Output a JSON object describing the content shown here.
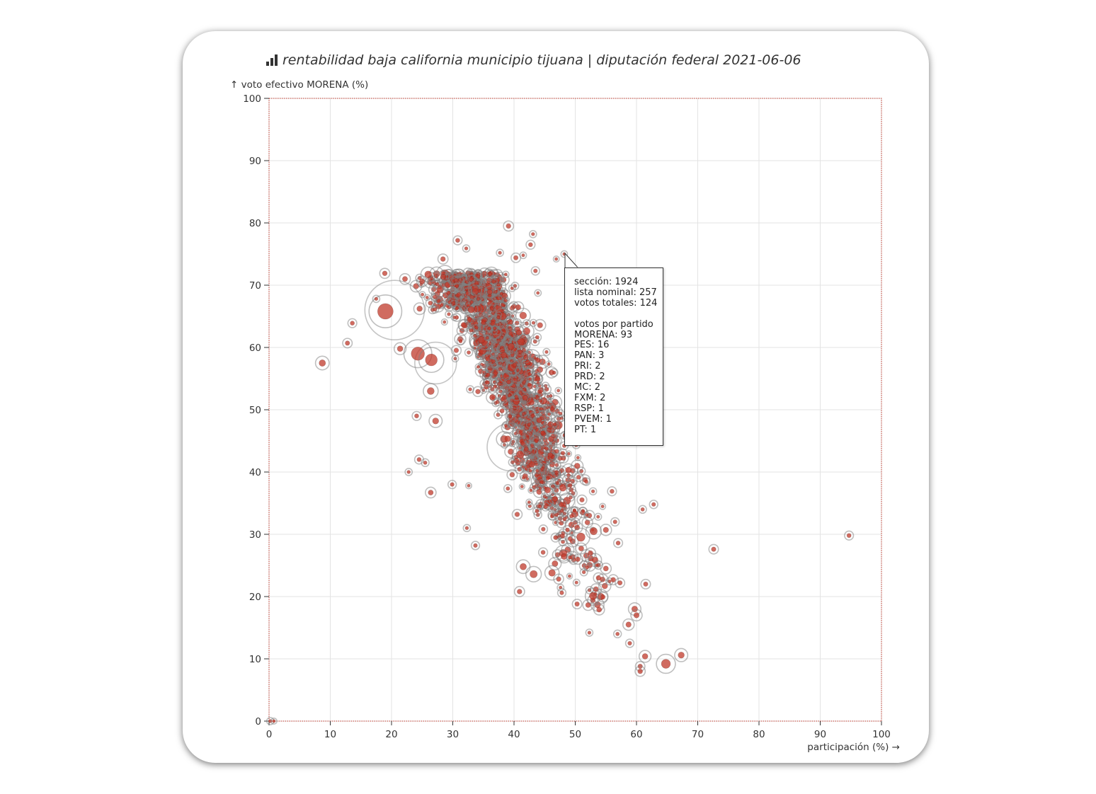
{
  "page": {
    "title": "rentabilidad baja california municipio tijuana | diputación federal 2021-06-06",
    "title_icon": "bar-chart-icon"
  },
  "colors": {
    "marker": "#c0392b",
    "ring": "#7f7f7f",
    "frame": "#c0392b",
    "grid": "#e3e3e3",
    "text": "#333333"
  },
  "tooltip": {
    "lines": [
      "sección: 1924",
      "lista nominal: 257",
      "votos totales: 124",
      "",
      "votos por partido",
      "MORENA: 93",
      "PES: 16",
      "PAN: 3",
      "PRI: 2",
      "PRD: 2",
      "MC: 2",
      "FXM: 2",
      "RSP: 1",
      "PVEM: 1",
      "PT: 1"
    ]
  },
  "chart_data": {
    "type": "scatter",
    "title": "rentabilidad baja california municipio tijuana | diputación federal 2021-06-06",
    "xlabel": "participación (%) →",
    "ylabel": "↑ voto efectivo MORENA (%)",
    "xlim": [
      0,
      100
    ],
    "ylim": [
      0,
      100
    ],
    "xticks": [
      0,
      10,
      20,
      30,
      40,
      50,
      60,
      70,
      80,
      90,
      100
    ],
    "yticks": [
      0,
      10,
      20,
      30,
      40,
      50,
      60,
      70,
      80,
      90,
      100
    ],
    "grid": true,
    "highlighted_point": {
      "x": 48.2,
      "y": 75.0,
      "seccion": 1924
    },
    "cluster": {
      "description": "dense cloud of sections, negative trend",
      "approx_points": 1400,
      "x_range": [
        24,
        56
      ],
      "y_range": [
        18,
        72
      ]
    },
    "points": [
      {
        "x": 8.7,
        "y": 57.5,
        "r": 2.3
      },
      {
        "x": 12.8,
        "y": 60.7,
        "r": 1.6
      },
      {
        "x": 13.6,
        "y": 63.9,
        "r": 1.5
      },
      {
        "x": 19.0,
        "y": 65.8,
        "r": 5.5
      },
      {
        "x": 18.9,
        "y": 71.9,
        "r": 1.7
      },
      {
        "x": 17.5,
        "y": 67.8,
        "r": 1.2
      },
      {
        "x": 21.4,
        "y": 59.8,
        "r": 2.0
      },
      {
        "x": 22.2,
        "y": 71.0,
        "r": 1.8
      },
      {
        "x": 24.3,
        "y": 59.0,
        "r": 4.7
      },
      {
        "x": 26.5,
        "y": 58.0,
        "r": 4.2
      },
      {
        "x": 25.0,
        "y": 70.6,
        "r": 1.8
      },
      {
        "x": 22.8,
        "y": 40.0,
        "r": 1.2
      },
      {
        "x": 24.5,
        "y": 42.0,
        "r": 1.5
      },
      {
        "x": 25.5,
        "y": 41.5,
        "r": 1.3
      },
      {
        "x": 26.4,
        "y": 36.7,
        "r": 1.8
      },
      {
        "x": 27.2,
        "y": 48.2,
        "r": 2.2
      },
      {
        "x": 24.1,
        "y": 49.0,
        "r": 1.5
      },
      {
        "x": 26.4,
        "y": 53.0,
        "r": 2.5
      },
      {
        "x": 28.4,
        "y": 74.2,
        "r": 1.7
      },
      {
        "x": 30.8,
        "y": 77.2,
        "r": 1.5
      },
      {
        "x": 32.2,
        "y": 75.9,
        "r": 1.2
      },
      {
        "x": 37.7,
        "y": 75.2,
        "r": 1.2
      },
      {
        "x": 39.1,
        "y": 79.5,
        "r": 1.7
      },
      {
        "x": 40.3,
        "y": 74.4,
        "r": 1.6
      },
      {
        "x": 41.5,
        "y": 74.8,
        "r": 1.1
      },
      {
        "x": 42.7,
        "y": 76.5,
        "r": 1.5
      },
      {
        "x": 43.1,
        "y": 78.2,
        "r": 1.2
      },
      {
        "x": 46.9,
        "y": 74.2,
        "r": 1.0
      },
      {
        "x": 48.2,
        "y": 75.0,
        "r": 1.1
      },
      {
        "x": 43.5,
        "y": 72.3,
        "r": 1.4
      },
      {
        "x": 32.3,
        "y": 31.0,
        "r": 1.2
      },
      {
        "x": 33.7,
        "y": 28.2,
        "r": 1.4
      },
      {
        "x": 29.9,
        "y": 38.0,
        "r": 1.4
      },
      {
        "x": 32.6,
        "y": 37.8,
        "r": 1.0
      },
      {
        "x": 40.9,
        "y": 20.8,
        "r": 1.7
      },
      {
        "x": 41.5,
        "y": 24.8,
        "r": 2.3
      },
      {
        "x": 43.2,
        "y": 23.6,
        "r": 2.6
      },
      {
        "x": 46.2,
        "y": 23.8,
        "r": 2.4
      },
      {
        "x": 47.8,
        "y": 20.6,
        "r": 1.4
      },
      {
        "x": 50.3,
        "y": 18.8,
        "r": 1.6
      },
      {
        "x": 52.3,
        "y": 14.2,
        "r": 1.2
      },
      {
        "x": 52.9,
        "y": 20.1,
        "r": 2.6
      },
      {
        "x": 53.9,
        "y": 17.9,
        "r": 1.8
      },
      {
        "x": 55.0,
        "y": 24.5,
        "r": 1.8
      },
      {
        "x": 56.2,
        "y": 22.7,
        "r": 1.7
      },
      {
        "x": 57.3,
        "y": 22.2,
        "r": 1.6
      },
      {
        "x": 57.0,
        "y": 28.6,
        "r": 1.5
      },
      {
        "x": 55.0,
        "y": 30.7,
        "r": 1.9
      },
      {
        "x": 53.0,
        "y": 30.5,
        "r": 2.6
      },
      {
        "x": 56.5,
        "y": 32.0,
        "r": 1.4
      },
      {
        "x": 56.0,
        "y": 36.9,
        "r": 1.5
      },
      {
        "x": 52.9,
        "y": 36.9,
        "r": 1.2
      },
      {
        "x": 61.0,
        "y": 34.0,
        "r": 1.3
      },
      {
        "x": 62.8,
        "y": 34.8,
        "r": 1.4
      },
      {
        "x": 61.5,
        "y": 22.0,
        "r": 1.6
      },
      {
        "x": 59.7,
        "y": 18.0,
        "r": 2.1
      },
      {
        "x": 60.0,
        "y": 17.0,
        "r": 1.9
      },
      {
        "x": 58.7,
        "y": 15.5,
        "r": 1.9
      },
      {
        "x": 56.9,
        "y": 14.0,
        "r": 1.3
      },
      {
        "x": 58.9,
        "y": 12.5,
        "r": 1.4
      },
      {
        "x": 61.4,
        "y": 10.4,
        "r": 2.0
      },
      {
        "x": 60.6,
        "y": 8.8,
        "r": 1.6
      },
      {
        "x": 60.6,
        "y": 8.0,
        "r": 1.7
      },
      {
        "x": 64.8,
        "y": 9.2,
        "r": 3.2
      },
      {
        "x": 67.3,
        "y": 10.6,
        "r": 2.2
      },
      {
        "x": 72.6,
        "y": 27.6,
        "r": 1.6
      },
      {
        "x": 94.7,
        "y": 29.8,
        "r": 1.5
      },
      {
        "x": 0.2,
        "y": 0.0,
        "r": 1.2
      },
      {
        "x": 0.8,
        "y": 0.0,
        "r": 1.0
      }
    ]
  }
}
